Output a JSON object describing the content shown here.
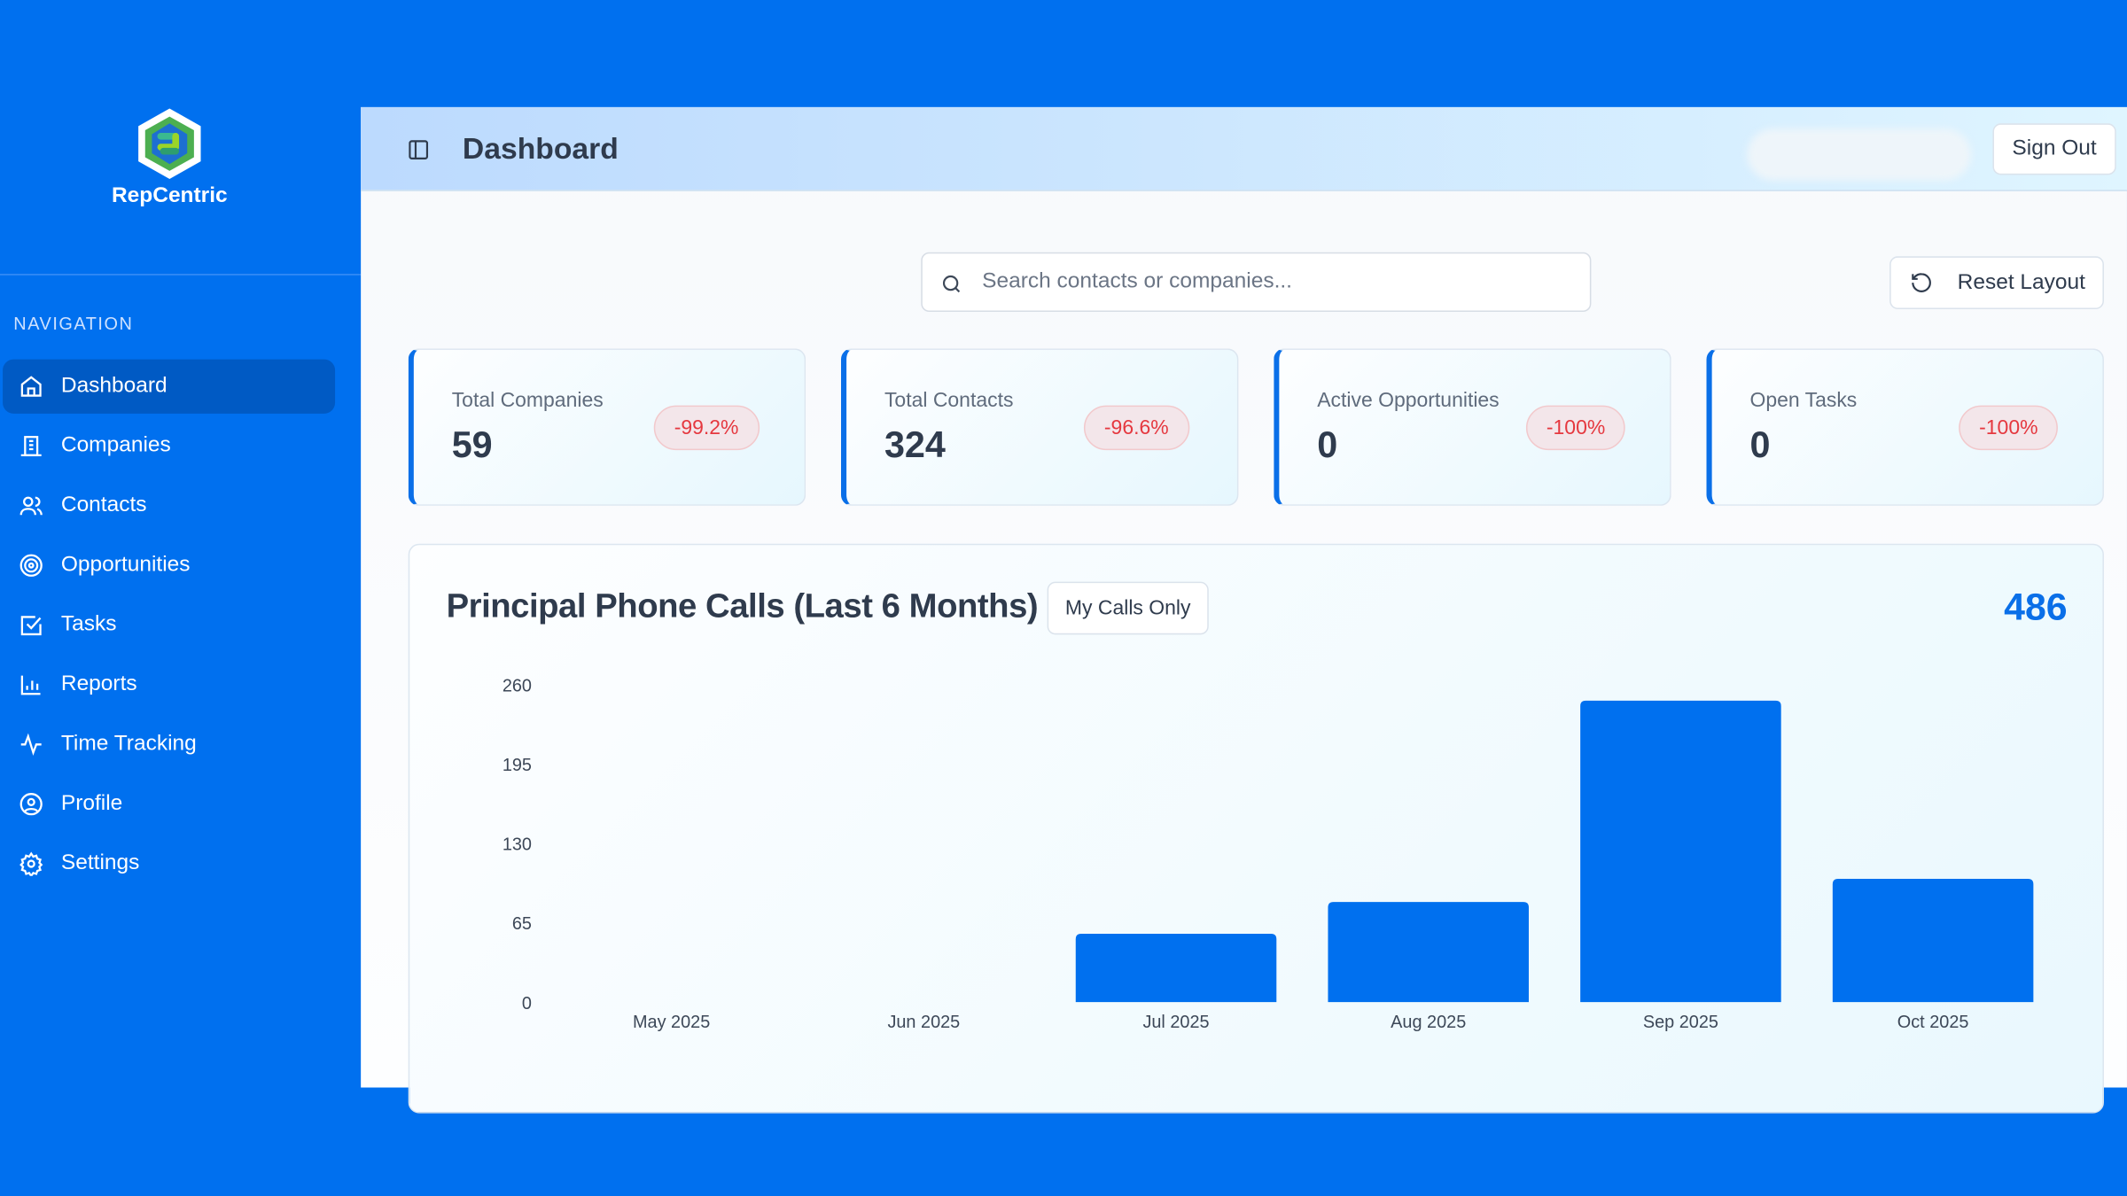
{
  "brand": {
    "name": "RepCentric"
  },
  "sidebar": {
    "section_label": "NAVIGATION",
    "items": [
      {
        "label": "Dashboard",
        "icon": "home-icon",
        "active": true
      },
      {
        "label": "Companies",
        "icon": "building-icon"
      },
      {
        "label": "Contacts",
        "icon": "users-icon"
      },
      {
        "label": "Opportunities",
        "icon": "target-icon"
      },
      {
        "label": "Tasks",
        "icon": "check-square-icon"
      },
      {
        "label": "Reports",
        "icon": "bar-chart-icon"
      },
      {
        "label": "Time Tracking",
        "icon": "activity-icon"
      },
      {
        "label": "Profile",
        "icon": "user-circle-icon"
      },
      {
        "label": "Settings",
        "icon": "gear-icon"
      }
    ]
  },
  "header": {
    "title": "Dashboard",
    "sign_out": "Sign Out"
  },
  "search": {
    "placeholder": "Search contacts or companies..."
  },
  "toolbar": {
    "reset_layout": "Reset Layout"
  },
  "stats": [
    {
      "label": "Total Companies",
      "value": "59",
      "change": "-99.2%"
    },
    {
      "label": "Total Contacts",
      "value": "324",
      "change": "-96.6%"
    },
    {
      "label": "Active Opportunities",
      "value": "0",
      "change": "-100%"
    },
    {
      "label": "Open Tasks",
      "value": "0",
      "change": "-100%"
    }
  ],
  "colors": {
    "accent": "#0a6fe8",
    "sidebar": "#0070ef",
    "negative": "#e5383f"
  },
  "calls": {
    "title": "Principal Phone Calls (Last 6 Months)",
    "filter_button": "My Calls Only",
    "total": "486"
  },
  "chart_data": {
    "type": "bar",
    "title": "Principal Phone Calls (Last 6 Months)",
    "categories": [
      "May 2025",
      "Jun 2025",
      "Jul 2025",
      "Aug 2025",
      "Sep 2025",
      "Oct 2025"
    ],
    "values": [
      0,
      0,
      56,
      82,
      247,
      101
    ],
    "yticks": [
      0,
      65,
      130,
      195,
      260
    ],
    "ylim": [
      0,
      260
    ],
    "grid": false,
    "bar_color": "#0070ef"
  }
}
